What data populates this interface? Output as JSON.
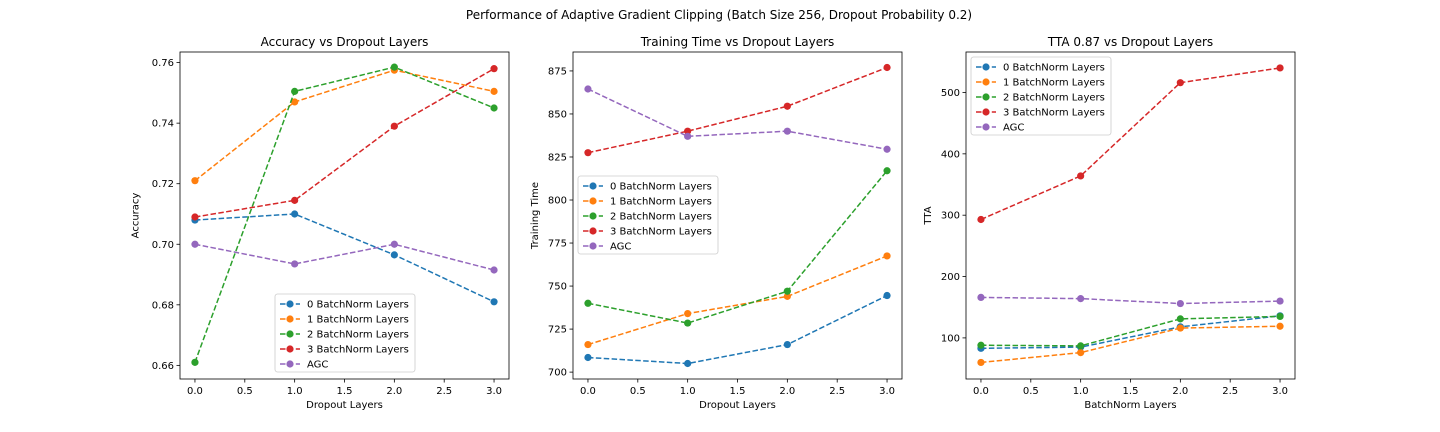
{
  "figure": {
    "title": "Performance of Adaptive Gradient Clipping (Batch Size 256, Dropout Probability 0.2)"
  },
  "chart_data": [
    {
      "type": "line",
      "title": "Accuracy vs Dropout Layers",
      "xlabel": "Dropout Layers",
      "ylabel": "Accuracy",
      "x": [
        0,
        1,
        2,
        3
      ],
      "xlim": [
        -0.15,
        3.15
      ],
      "ylim": [
        0.6555,
        0.7635
      ],
      "xticks": [
        0.0,
        0.5,
        1.0,
        1.5,
        2.0,
        2.5,
        3.0
      ],
      "xtick_labels": [
        "0.0",
        "0.5",
        "1.0",
        "1.5",
        "2.0",
        "2.5",
        "3.0"
      ],
      "yticks": [
        0.66,
        0.68,
        0.7,
        0.72,
        0.74,
        0.76
      ],
      "ytick_labels": [
        "0.66",
        "0.68",
        "0.70",
        "0.72",
        "0.74",
        "0.76"
      ],
      "grid": false,
      "legend_position": "lower-right",
      "series": [
        {
          "name": "0 BatchNorm Layers",
          "color": "#1f77b4",
          "values": [
            0.708,
            0.71,
            0.6965,
            0.681
          ]
        },
        {
          "name": "1 BatchNorm Layers",
          "color": "#ff7f0e",
          "values": [
            0.721,
            0.747,
            0.7575,
            0.7505
          ]
        },
        {
          "name": "2 BatchNorm Layers",
          "color": "#2ca02c",
          "values": [
            0.661,
            0.7505,
            0.7585,
            0.745
          ]
        },
        {
          "name": "3 BatchNorm Layers",
          "color": "#d62728",
          "values": [
            0.709,
            0.7145,
            0.739,
            0.758
          ]
        },
        {
          "name": "AGC",
          "color": "#9467bd",
          "values": [
            0.7,
            0.6935,
            0.7,
            0.6915
          ]
        }
      ]
    },
    {
      "type": "line",
      "title": "Training Time vs Dropout Layers",
      "xlabel": "Dropout Layers",
      "ylabel": "Training Time",
      "x": [
        0,
        1,
        2,
        3
      ],
      "xlim": [
        -0.15,
        3.15
      ],
      "ylim": [
        696,
        886
      ],
      "xticks": [
        0.0,
        0.5,
        1.0,
        1.5,
        2.0,
        2.5,
        3.0
      ],
      "xtick_labels": [
        "0.0",
        "0.5",
        "1.0",
        "1.5",
        "2.0",
        "2.5",
        "3.0"
      ],
      "yticks": [
        700,
        725,
        750,
        775,
        800,
        825,
        850,
        875
      ],
      "ytick_labels": [
        "700",
        "725",
        "750",
        "775",
        "800",
        "825",
        "850",
        "875"
      ],
      "grid": false,
      "legend_position": "center-left",
      "series": [
        {
          "name": "0 BatchNorm Layers",
          "color": "#1f77b4",
          "values": [
            708.5,
            705,
            716,
            744.5
          ]
        },
        {
          "name": "1 BatchNorm Layers",
          "color": "#ff7f0e",
          "values": [
            716,
            734,
            744,
            767.5
          ]
        },
        {
          "name": "2 BatchNorm Layers",
          "color": "#2ca02c",
          "values": [
            740,
            728.5,
            747,
            817
          ]
        },
        {
          "name": "3 BatchNorm Layers",
          "color": "#d62728",
          "values": [
            827.5,
            840,
            854.5,
            877
          ]
        },
        {
          "name": "AGC",
          "color": "#9467bd",
          "values": [
            864.5,
            837,
            840,
            829.5
          ]
        }
      ]
    },
    {
      "type": "line",
      "title": "TTA 0.87 vs Dropout Layers",
      "xlabel": "BatchNorm Layers",
      "ylabel": "TTA",
      "x": [
        0,
        1,
        2,
        3
      ],
      "xlim": [
        -0.15,
        3.15
      ],
      "ylim": [
        33,
        566
      ],
      "xticks": [
        0.0,
        0.5,
        1.0,
        1.5,
        2.0,
        2.5,
        3.0
      ],
      "xtick_labels": [
        "0.0",
        "0.5",
        "1.0",
        "1.5",
        "2.0",
        "2.5",
        "3.0"
      ],
      "yticks": [
        100,
        200,
        300,
        400,
        500
      ],
      "ytick_labels": [
        "100",
        "200",
        "300",
        "400",
        "500"
      ],
      "grid": false,
      "legend_position": "upper-left",
      "series": [
        {
          "name": "0 BatchNorm Layers",
          "color": "#1f77b4",
          "values": [
            83,
            85,
            118,
            136
          ]
        },
        {
          "name": "1 BatchNorm Layers",
          "color": "#ff7f0e",
          "values": [
            60,
            76,
            116,
            119
          ]
        },
        {
          "name": "2 BatchNorm Layers",
          "color": "#2ca02c",
          "values": [
            88,
            87,
            131,
            135
          ]
        },
        {
          "name": "3 BatchNorm Layers",
          "color": "#d62728",
          "values": [
            293,
            364,
            516,
            540
          ]
        },
        {
          "name": "AGC",
          "color": "#9467bd",
          "values": [
            166,
            164,
            156,
            160
          ]
        }
      ]
    }
  ]
}
